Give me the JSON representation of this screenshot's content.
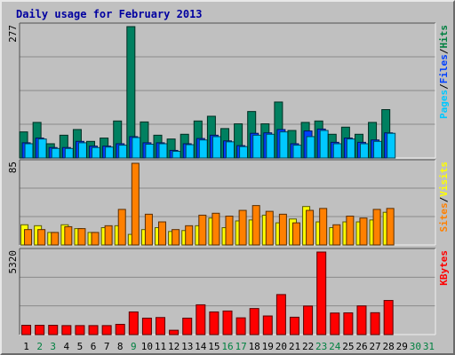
{
  "chart_data": {
    "type": "bar",
    "title": "Daily usage for February 2013",
    "categories": [
      "1",
      "2",
      "3",
      "4",
      "5",
      "6",
      "7",
      "8",
      "9",
      "10",
      "11",
      "12",
      "13",
      "14",
      "15",
      "16",
      "17",
      "18",
      "19",
      "20",
      "21",
      "22",
      "23",
      "24",
      "25",
      "26",
      "27",
      "28",
      "29",
      "30",
      "31"
    ],
    "weekend_days": [
      "2",
      "3",
      "9",
      "16",
      "17",
      "23",
      "24",
      "30",
      "31"
    ],
    "panels": [
      {
        "id": "hits-files-pages",
        "max_label": "277",
        "ymax": 277,
        "legend": [
          {
            "label": "Pages",
            "color": "#00c8ff"
          },
          {
            "label": "Files",
            "color": "#0040ff"
          },
          {
            "label": "Hits",
            "color": "#008040"
          }
        ],
        "series": [
          {
            "name": "Hits",
            "color": "#008060",
            "values": [
              55,
              75,
              30,
              48,
              60,
              35,
              42,
              78,
              277,
              76,
              48,
              40,
              50,
              78,
              88,
              62,
              72,
              98,
              72,
              118,
              58,
              75,
              78,
              50,
              65,
              50,
              75,
              102,
              0,
              0,
              0
            ]
          },
          {
            "name": "Files",
            "color": "#0040ff",
            "values": [
              32,
              42,
              22,
              22,
              35,
              25,
              25,
              30,
              45,
              32,
              32,
              16,
              30,
              41,
              48,
              36,
              26,
              52,
              53,
              60,
              30,
              57,
              61,
              33,
              42,
              33,
              38,
              53,
              0,
              0,
              0
            ]
          },
          {
            "name": "Pages",
            "color": "#00c8ff",
            "values": [
              30,
              40,
              20,
              20,
              32,
              22,
              23,
              27,
              43,
              29,
              30,
              14,
              28,
              38,
              45,
              34,
              24,
              48,
              50,
              55,
              27,
              45,
              58,
              30,
              40,
              30,
              35,
              52,
              0,
              0,
              0
            ]
          }
        ]
      },
      {
        "id": "visits-sites",
        "max_label": "85",
        "ymax": 85,
        "legend": [
          {
            "label": "Sites",
            "color": "#ff8000"
          },
          {
            "label": "Visits",
            "color": "#ffff00"
          }
        ],
        "series": [
          {
            "name": "Visits",
            "color": "#ffff00",
            "values": [
              21,
              20,
              13,
              21,
              17,
              13,
              18,
              20,
              11,
              16,
              18,
              14,
              15,
              20,
              28,
              18,
              25,
              26,
              31,
              23,
              27,
              40,
              24,
              18,
              24,
              24,
              26,
              34,
              0,
              0,
              0
            ]
          },
          {
            "name": "Sites",
            "color": "#ff8000",
            "values": [
              16,
              16,
              13,
              19,
              17,
              13,
              20,
              37,
              85,
              32,
              24,
              16,
              20,
              31,
              33,
              30,
              36,
              41,
              35,
              32,
              23,
              36,
              38,
              21,
              30,
              28,
              37,
              38,
              0,
              0,
              0
            ]
          }
        ]
      },
      {
        "id": "kbytes",
        "max_label": "5320",
        "ymax": 5320,
        "legend": [
          {
            "label": "KBytes",
            "color": "#ff0000"
          }
        ],
        "series": [
          {
            "name": "KBytes",
            "color": "#ff0000",
            "values": [
              600,
              600,
              600,
              580,
              580,
              580,
              580,
              660,
              1460,
              1060,
              1100,
              280,
              1060,
              1920,
              1460,
              1520,
              1080,
              1680,
              1200,
              2580,
              1120,
              1840,
              5320,
              1390,
              1400,
              1850,
              1410,
              2200,
              0,
              0,
              0
            ]
          }
        ]
      }
    ]
  }
}
